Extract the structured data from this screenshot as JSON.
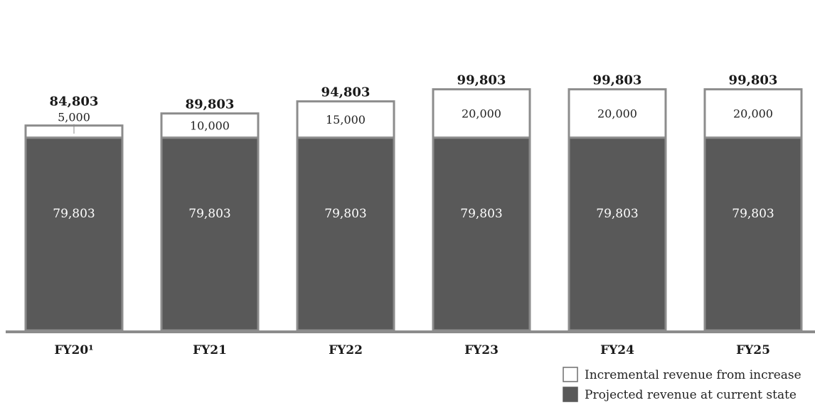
{
  "chart_data": {
    "type": "bar",
    "stacked": true,
    "categories": [
      "FY20¹",
      "FY21",
      "FY22",
      "FY23",
      "FY24",
      "FY25"
    ],
    "series": [
      {
        "name": "Projected revenue at current state",
        "values": [
          79803,
          79803,
          79803,
          79803,
          79803,
          79803
        ],
        "color": "#595959"
      },
      {
        "name": "Incremental revenue from increase",
        "values": [
          5000,
          10000,
          15000,
          20000,
          20000,
          20000
        ],
        "color": "#ffffff"
      }
    ],
    "totals": [
      84803,
      89803,
      94803,
      99803,
      99803,
      99803
    ],
    "total_labels": [
      "84,803",
      "89,803",
      "94,803",
      "99,803",
      "99,803",
      "99,803"
    ],
    "base_labels": [
      "79,803",
      "79,803",
      "79,803",
      "79,803",
      "79,803",
      "79,803"
    ],
    "top_labels": [
      "5,000",
      "10,000",
      "15,000",
      "20,000",
      "20,000",
      "20,000"
    ],
    "legend": {
      "position": "bottom-right",
      "items": [
        {
          "label": "Incremental revenue from increase",
          "color": "#ffffff"
        },
        {
          "label": "Projected revenue at current state",
          "color": "#595959"
        }
      ]
    },
    "title": "",
    "xlabel": "",
    "ylabel": "",
    "grid": false,
    "outline_color": "#8c8c8c"
  }
}
